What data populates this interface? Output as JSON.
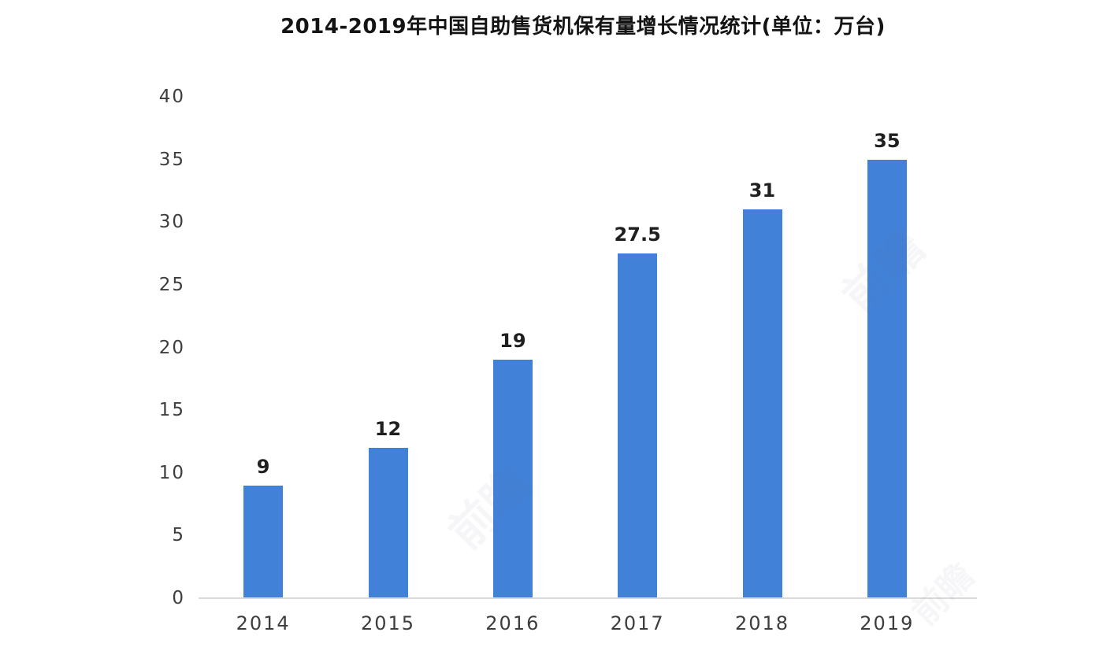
{
  "title": "2014-2019年中国自助售货机保有量增长情况统计(单位：万台)",
  "watermark": "前瞻",
  "colors": {
    "bar": "#4182d8",
    "axis_line": "#d9d9d9",
    "tick_label": "#3d3d3d",
    "value_label": "#1f1f1f",
    "title": "#141414",
    "background": "#ffffff"
  },
  "chart_data": {
    "type": "bar",
    "title": "2014-2019年中国自助售货机保有量增长情况统计(单位：万台)",
    "unit": "万台",
    "categories": [
      "2014",
      "2015",
      "2016",
      "2017",
      "2018",
      "2019"
    ],
    "values": [
      9,
      12,
      19,
      27.5,
      31,
      35
    ],
    "value_labels": [
      "9",
      "12",
      "19",
      "27.5",
      "31",
      "35"
    ],
    "xlabel": "",
    "ylabel": "",
    "ylim": [
      0,
      40
    ],
    "yticks": [
      0,
      5,
      10,
      15,
      20,
      25,
      30,
      35,
      40
    ],
    "grid": false,
    "legend": false,
    "bar_color": "#4182d8"
  }
}
